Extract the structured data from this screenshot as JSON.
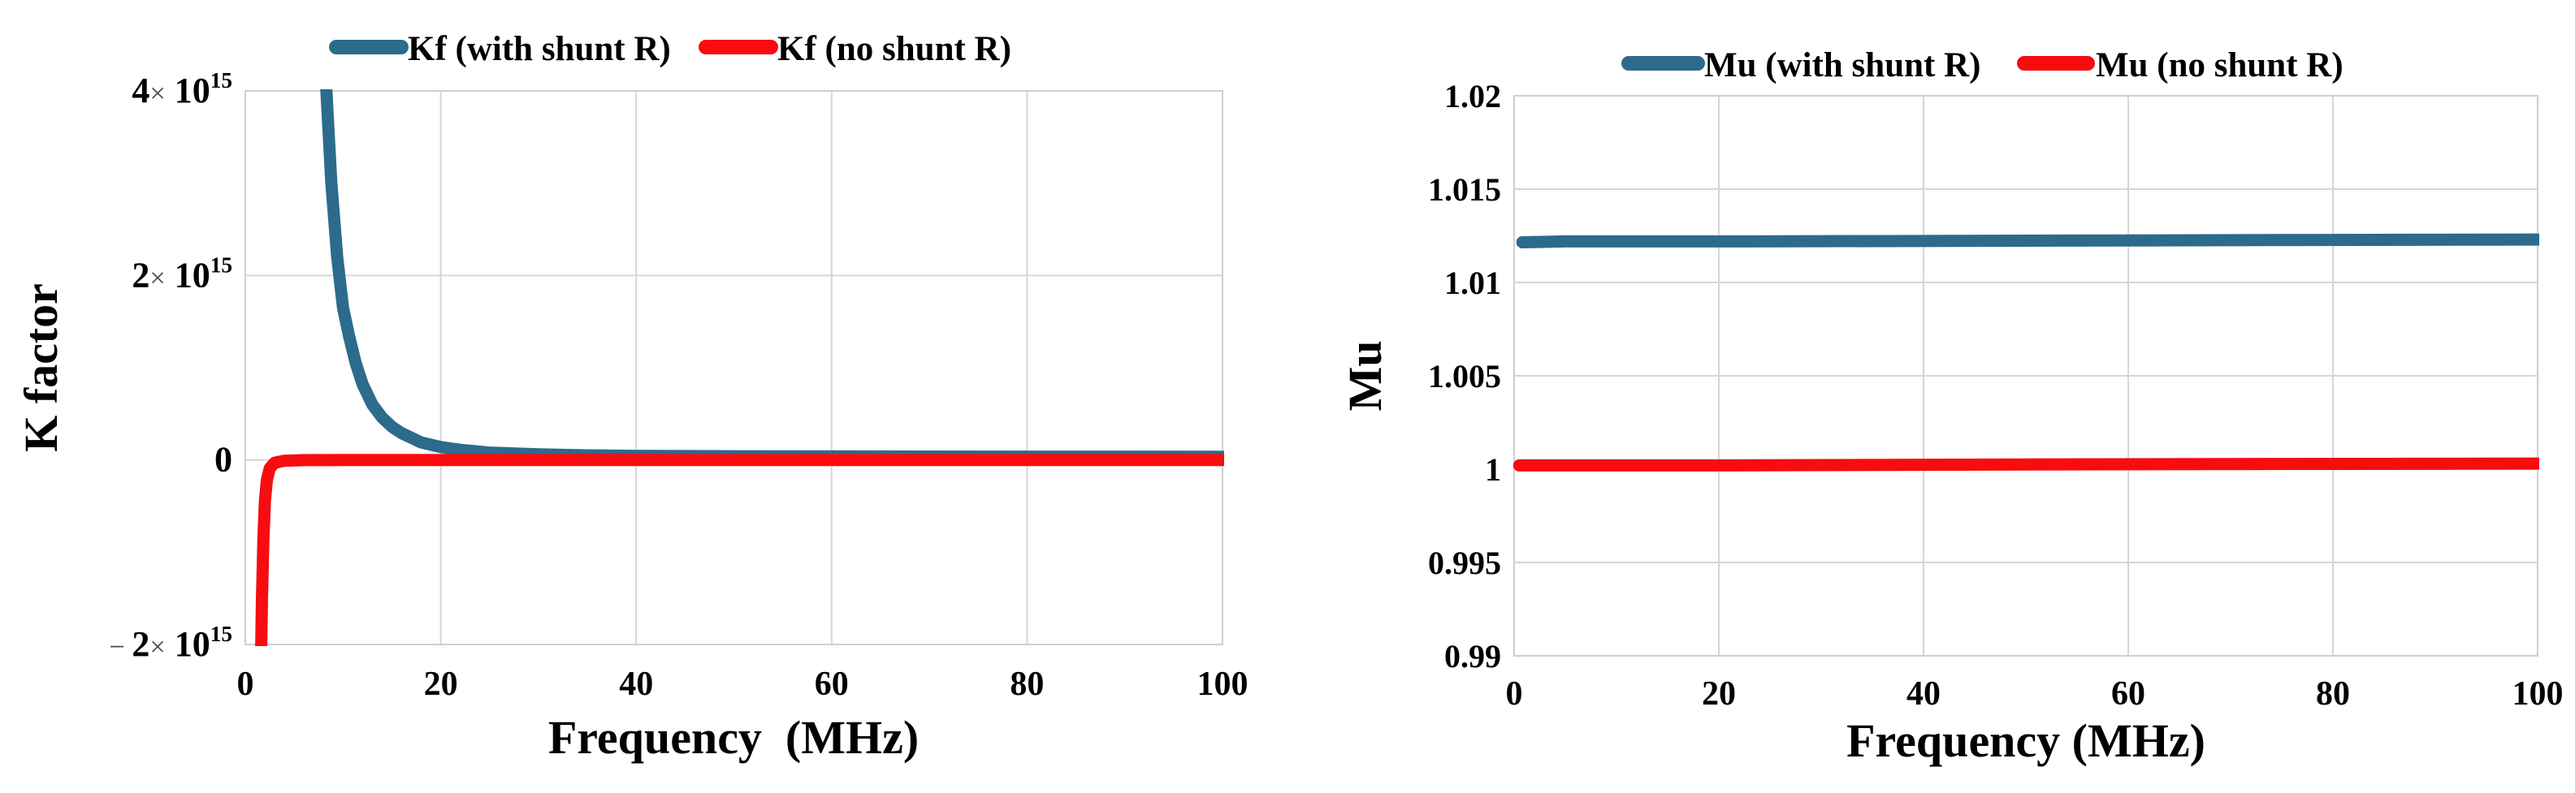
{
  "page": {
    "background": "#ffffff"
  },
  "colors": {
    "series_blue": "#2C6B8C",
    "series_red": "#F80C0F",
    "gridline": "#D6D6D6",
    "text": "#000000"
  },
  "chart_data": [
    {
      "type": "line",
      "title": "",
      "xlabel": "Frequency  (MHz)",
      "ylabel": "K factor",
      "xlim": [
        0,
        100
      ],
      "ylim": [
        -2000000000000000.0,
        4000000000000000.0
      ],
      "grid": true,
      "legend_position": "top-center",
      "x_ticks": [
        {
          "label": "0",
          "value": 0
        },
        {
          "label": "20",
          "value": 20
        },
        {
          "label": "40",
          "value": 40
        },
        {
          "label": "60",
          "value": 60
        },
        {
          "label": "80",
          "value": 80
        },
        {
          "label": "100",
          "value": 100
        }
      ],
      "y_ticks": [
        {
          "mantissa": "4",
          "times": "×",
          "base": " 10",
          "exp": "15",
          "value": 4000000000000000.0
        },
        {
          "mantissa": "2",
          "times": "×",
          "base": " 10",
          "exp": "15",
          "value": 2000000000000000.0
        },
        {
          "mantissa": "0",
          "value": 0
        },
        {
          "sign": "− ",
          "mantissa": "2",
          "times": "×",
          "base": " 10",
          "exp": "15",
          "value": -2000000000000000.0
        }
      ],
      "series": [
        {
          "name": "Kf (with shunt R)",
          "color": "#2C6B8C",
          "points": [
            [
              7.9,
              5500000000000000.0
            ],
            [
              8.3,
              4000000000000000.0
            ],
            [
              8.8,
              3000000000000000.0
            ],
            [
              9.4,
              2200000000000000.0
            ],
            [
              10,
              1650000000000000.0
            ],
            [
              10.6,
              1350000000000000.0
            ],
            [
              11.3,
              1050000000000000.0
            ],
            [
              12,
              820000000000000.0
            ],
            [
              13,
              600000000000000.0
            ],
            [
              14,
              460000000000000.0
            ],
            [
              15,
              360000000000000.0
            ],
            [
              16,
              290000000000000.0
            ],
            [
              18,
              190000000000000.0
            ],
            [
              20,
              140000000000000.0
            ],
            [
              22,
              110000000000000.0
            ],
            [
              25,
              80000000000000.0
            ],
            [
              30,
              60000000000000.0
            ],
            [
              35,
              50000000000000.0
            ],
            [
              40,
              45000000000000.0
            ],
            [
              50,
              40000000000000.0
            ],
            [
              60,
              38000000000000.0
            ],
            [
              80,
              36000000000000.0
            ],
            [
              100,
              35000000000000.0
            ]
          ]
        },
        {
          "name": "Kf (no shunt R)",
          "color": "#F80C0F",
          "points": [
            [
              1.55,
              -2600000000000000.0
            ],
            [
              1.7,
              -1500000000000000.0
            ],
            [
              1.85,
              -850000000000000.0
            ],
            [
              2.0,
              -450000000000000.0
            ],
            [
              2.2,
              -220000000000000.0
            ],
            [
              2.5,
              -90000000000000.0
            ],
            [
              3.0,
              -30000000000000.0
            ],
            [
              4.0,
              -8000000000000.0
            ],
            [
              6.0,
              -2000000000000.0
            ],
            [
              10,
              0
            ],
            [
              20,
              0
            ],
            [
              40,
              0
            ],
            [
              60,
              0
            ],
            [
              80,
              0
            ],
            [
              100,
              0
            ]
          ]
        }
      ]
    },
    {
      "type": "line",
      "title": "",
      "xlabel": "Frequency (MHz)",
      "ylabel": "Mu",
      "xlim": [
        0,
        100
      ],
      "ylim": [
        0.99,
        1.02
      ],
      "grid": true,
      "legend_position": "top-center",
      "x_ticks": [
        {
          "label": "0",
          "value": 0
        },
        {
          "label": "20",
          "value": 20
        },
        {
          "label": "40",
          "value": 40
        },
        {
          "label": "60",
          "value": 60
        },
        {
          "label": "80",
          "value": 80
        },
        {
          "label": "100",
          "value": 100
        }
      ],
      "y_ticks": [
        {
          "mantissa": "1.02",
          "value": 1.02
        },
        {
          "mantissa": "1.015",
          "value": 1.015
        },
        {
          "mantissa": "1.01",
          "value": 1.01
        },
        {
          "mantissa": "1.005",
          "value": 1.005
        },
        {
          "mantissa": "1",
          "value": 1
        },
        {
          "mantissa": "0.995",
          "value": 0.995
        },
        {
          "mantissa": "0.99",
          "value": 0.99
        }
      ],
      "series": [
        {
          "name": "Mu (with shunt R)",
          "color": "#2C6B8C",
          "points": [
            [
              0.8,
              1.01215
            ],
            [
              5,
              1.0122
            ],
            [
              20,
              1.0122
            ],
            [
              40,
              1.01222
            ],
            [
              60,
              1.01225
            ],
            [
              80,
              1.01228
            ],
            [
              100,
              1.0123
            ]
          ]
        },
        {
          "name": "Mu (no shunt R)",
          "color": "#F80C0F",
          "points": [
            [
              0.5,
              1.0002
            ],
            [
              20,
              1.0002
            ],
            [
              50,
              1.00025
            ],
            [
              100,
              1.0003
            ]
          ]
        }
      ]
    }
  ]
}
